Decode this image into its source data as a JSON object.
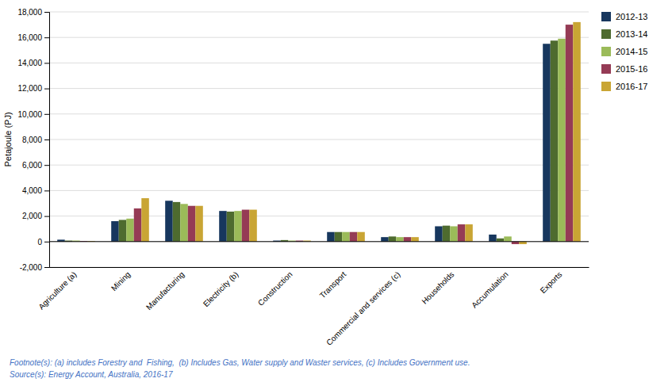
{
  "chart_data": {
    "type": "bar",
    "categories": [
      "Agriculture (a)",
      "Mining",
      "Manufacturing",
      "Electricity (b)",
      "Construction",
      "Transport",
      "Commercial and services (c)",
      "Households",
      "Accumulation",
      "Exports"
    ],
    "series": [
      {
        "name": "2012-13",
        "color": "#17375E",
        "values": [
          150,
          1600,
          3200,
          2400,
          80,
          750,
          350,
          1200,
          550,
          15500
        ]
      },
      {
        "name": "2013-14",
        "color": "#4E6B2F",
        "values": [
          80,
          1700,
          3100,
          2350,
          120,
          750,
          400,
          1250,
          250,
          15750
        ]
      },
      {
        "name": "2014-15",
        "color": "#9BBB59",
        "values": [
          80,
          1800,
          2950,
          2400,
          80,
          750,
          350,
          1200,
          400,
          15900
        ]
      },
      {
        "name": "2015-16",
        "color": "#953B55",
        "values": [
          50,
          2600,
          2800,
          2500,
          80,
          750,
          350,
          1350,
          -200,
          17000
        ]
      },
      {
        "name": "2016-17",
        "color": "#C9A534",
        "values": [
          50,
          3400,
          2800,
          2500,
          80,
          750,
          350,
          1350,
          -200,
          17200
        ]
      }
    ],
    "ylabel": "Petajoule (PJ)",
    "ylim": [
      -2000,
      18000
    ],
    "yticks": [
      {
        "value": -2000,
        "label": "-2,000"
      },
      0,
      {
        "value": 2000,
        "label": "2,000"
      },
      {
        "value": 4000,
        "label": "4,000"
      },
      {
        "value": 6000,
        "label": "6,000"
      },
      {
        "value": 8000,
        "label": "8,000"
      },
      {
        "value": 10000,
        "label": "10,000"
      },
      {
        "value": 12000,
        "label": "12,000"
      },
      {
        "value": 14000,
        "label": "14,000"
      },
      {
        "value": 16000,
        "label": "16,000"
      },
      {
        "value": 18000,
        "label": "18,000"
      }
    ],
    "grid": true,
    "legend": "right",
    "annotations": [
      {
        "text": "Footnote(s): (a) includes Forestry and  Fishing,  (b) Includes Gas, Water supply and Waster services, (c) Includes Government use.",
        "color": "#4472C4"
      },
      {
        "text": "Source(s): Energy Account, Australia, 2016-17",
        "color": "#4472C4"
      }
    ]
  }
}
